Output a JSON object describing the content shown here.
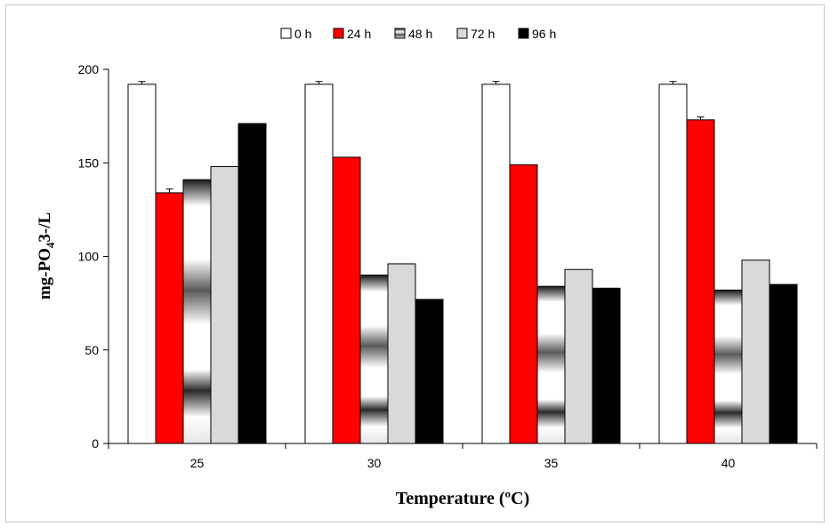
{
  "chart_data": {
    "type": "bar",
    "title": "",
    "xlabel": "Temperature (ºC)",
    "ylabel": {
      "prefix": "mg-PO",
      "sub": "4",
      "suffix": "3-/L"
    },
    "categories": [
      "25",
      "30",
      "35",
      "40"
    ],
    "ylim": [
      0,
      200
    ],
    "yticks": [
      "0",
      "50",
      "100",
      "150",
      "200"
    ],
    "grid": false,
    "legend_position": "top",
    "series": [
      {
        "name": "0 h",
        "color": "#ffffff",
        "style": "solid",
        "values": [
          192,
          192,
          192,
          192
        ],
        "error": [
          1.5,
          1.5,
          1.5,
          1.5
        ]
      },
      {
        "name": "24 h",
        "color": "#ff0000",
        "style": "solid",
        "values": [
          134,
          153,
          149,
          173
        ],
        "error": [
          2,
          0,
          0,
          1.5
        ]
      },
      {
        "name": "48 h",
        "color": "#808080",
        "style": "gradient",
        "values": [
          141,
          90,
          84,
          82
        ],
        "error": [
          0,
          0,
          0,
          0
        ]
      },
      {
        "name": "72 h",
        "color": "#d9d9d9",
        "style": "solid",
        "values": [
          148,
          96,
          93,
          98
        ],
        "error": [
          0,
          0,
          0,
          0
        ]
      },
      {
        "name": "96 h",
        "color": "#000000",
        "style": "solid",
        "values": [
          171,
          77,
          83,
          85
        ],
        "error": [
          0,
          0,
          0,
          0
        ]
      }
    ]
  }
}
